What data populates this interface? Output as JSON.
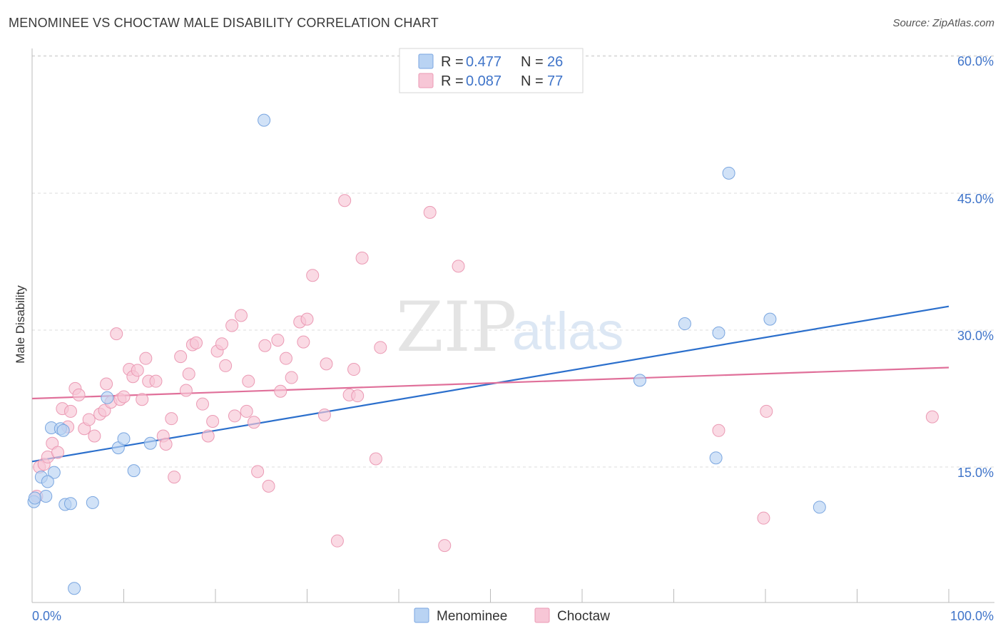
{
  "title": "MENOMINEE VS CHOCTAW MALE DISABILITY CORRELATION CHART",
  "source": "Source: ZipAtlas.com",
  "watermark": {
    "zip": "ZIP",
    "atlas": "atlas"
  },
  "colors": {
    "menominee_fill": "#b9d3f3",
    "menominee_stroke": "#7aa6e0",
    "menominee_line": "#2b6fcc",
    "choctaw_fill": "#f7c6d6",
    "choctaw_stroke": "#eb9ab4",
    "choctaw_line": "#e0709a",
    "tick_label": "#3f74c9",
    "grid": "#dddddd"
  },
  "legend": {
    "r_label": "R =",
    "n_label": "N =",
    "entries": [
      {
        "r": "0.477",
        "n": "26"
      },
      {
        "r": "0.087",
        "n": "77"
      }
    ]
  },
  "chart_data": {
    "type": "scatter",
    "title": "MENOMINEE VS CHOCTAW MALE DISABILITY CORRELATION CHART",
    "xlabel": "",
    "ylabel": "Male Disability",
    "xlim": [
      0,
      100
    ],
    "ylim": [
      0,
      65
    ],
    "x_tick_labels": [
      "0.0%",
      "100.0%"
    ],
    "y_ticks": [
      15,
      30,
      45,
      60
    ],
    "y_tick_labels": [
      "15.0%",
      "30.0%",
      "45.0%",
      "60.0%"
    ],
    "grid": true,
    "legend_placement": "top-center",
    "series": [
      {
        "name": "Menominee",
        "color": "#7aa6e0",
        "points": [
          [
            0.2,
            11.2
          ],
          [
            1.0,
            13.9
          ],
          [
            1.5,
            11.8
          ],
          [
            2.1,
            19.3
          ],
          [
            2.4,
            14.4
          ],
          [
            3.1,
            19.2
          ],
          [
            3.4,
            19.0
          ],
          [
            3.6,
            10.9
          ],
          [
            4.2,
            11.0
          ],
          [
            4.6,
            1.7
          ],
          [
            6.6,
            11.1
          ],
          [
            8.2,
            22.6
          ],
          [
            9.4,
            17.1
          ],
          [
            10.0,
            18.1
          ],
          [
            11.1,
            14.6
          ],
          [
            12.9,
            17.6
          ],
          [
            25.3,
            53.0
          ],
          [
            66.3,
            24.5
          ],
          [
            71.2,
            30.7
          ],
          [
            74.6,
            16.0
          ],
          [
            74.9,
            29.7
          ],
          [
            76.0,
            47.2
          ],
          [
            80.5,
            31.2
          ],
          [
            85.9,
            10.6
          ],
          [
            0.3,
            11.6
          ],
          [
            1.7,
            13.4
          ]
        ],
        "trendline": {
          "x": [
            0,
            100
          ],
          "y": [
            15.6,
            32.6
          ]
        }
      },
      {
        "name": "Choctaw",
        "color": "#eb9ab4",
        "points": [
          [
            0.5,
            11.8
          ],
          [
            0.8,
            15.0
          ],
          [
            1.3,
            15.3
          ],
          [
            1.7,
            16.1
          ],
          [
            2.2,
            17.6
          ],
          [
            2.8,
            16.6
          ],
          [
            3.3,
            21.4
          ],
          [
            3.9,
            19.4
          ],
          [
            4.2,
            21.1
          ],
          [
            4.7,
            23.6
          ],
          [
            5.1,
            22.9
          ],
          [
            5.7,
            19.2
          ],
          [
            6.2,
            20.2
          ],
          [
            6.8,
            18.4
          ],
          [
            7.4,
            20.8
          ],
          [
            7.9,
            21.2
          ],
          [
            8.1,
            24.1
          ],
          [
            8.6,
            22.1
          ],
          [
            9.2,
            29.6
          ],
          [
            9.6,
            22.4
          ],
          [
            10.0,
            22.7
          ],
          [
            10.6,
            25.7
          ],
          [
            11.0,
            24.9
          ],
          [
            11.5,
            25.6
          ],
          [
            12.0,
            22.4
          ],
          [
            12.4,
            26.9
          ],
          [
            12.7,
            24.4
          ],
          [
            13.5,
            24.4
          ],
          [
            14.3,
            18.4
          ],
          [
            14.6,
            17.5
          ],
          [
            15.2,
            20.3
          ],
          [
            15.5,
            13.9
          ],
          [
            16.2,
            27.1
          ],
          [
            16.8,
            23.4
          ],
          [
            17.1,
            25.2
          ],
          [
            17.5,
            28.4
          ],
          [
            17.9,
            28.6
          ],
          [
            18.6,
            21.9
          ],
          [
            19.2,
            18.4
          ],
          [
            19.7,
            20.0
          ],
          [
            20.2,
            27.7
          ],
          [
            20.7,
            28.5
          ],
          [
            21.1,
            26.1
          ],
          [
            21.8,
            30.5
          ],
          [
            22.1,
            20.6
          ],
          [
            22.8,
            31.6
          ],
          [
            23.4,
            21.1
          ],
          [
            23.6,
            24.4
          ],
          [
            24.2,
            19.9
          ],
          [
            24.6,
            14.5
          ],
          [
            25.4,
            28.3
          ],
          [
            25.8,
            12.9
          ],
          [
            26.8,
            28.9
          ],
          [
            27.1,
            23.3
          ],
          [
            27.7,
            26.9
          ],
          [
            28.3,
            24.8
          ],
          [
            29.2,
            30.9
          ],
          [
            29.6,
            28.7
          ],
          [
            30.0,
            31.2
          ],
          [
            30.6,
            36.0
          ],
          [
            31.9,
            20.7
          ],
          [
            32.1,
            26.3
          ],
          [
            33.3,
            6.9
          ],
          [
            34.1,
            44.2
          ],
          [
            34.6,
            22.9
          ],
          [
            35.1,
            25.7
          ],
          [
            35.5,
            22.8
          ],
          [
            36.0,
            37.9
          ],
          [
            37.5,
            15.9
          ],
          [
            38.0,
            28.1
          ],
          [
            43.4,
            42.9
          ],
          [
            45.0,
            6.4
          ],
          [
            46.5,
            37.0
          ],
          [
            74.9,
            19.0
          ],
          [
            79.8,
            9.4
          ],
          [
            80.1,
            21.1
          ],
          [
            98.2,
            20.5
          ]
        ],
        "trendline": {
          "x": [
            0,
            100
          ],
          "y": [
            22.5,
            25.9
          ]
        }
      }
    ]
  },
  "bottom_legend": [
    "Menominee",
    "Choctaw"
  ]
}
